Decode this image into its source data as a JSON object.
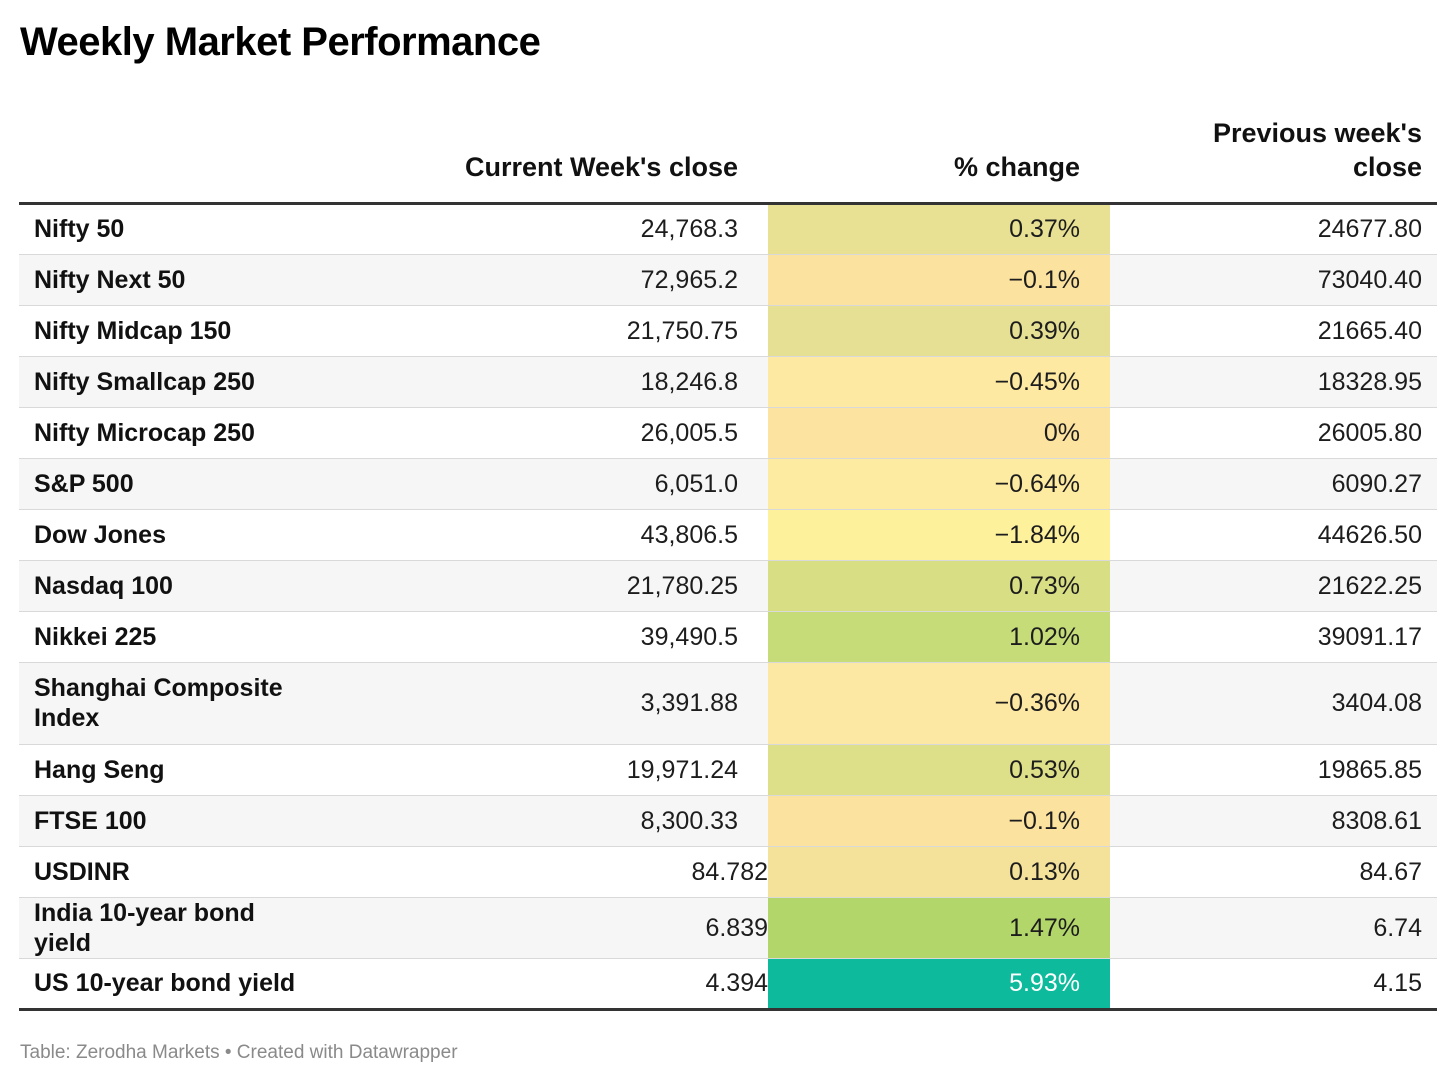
{
  "title": "Weekly Market Performance",
  "source": "Table: Zerodha Markets • Created with Datawrapper",
  "columns": {
    "name": "",
    "current": "Current Week's close",
    "pct_change": "% change",
    "previous": "Previous week's close"
  },
  "colors": {
    "negative_heat": "#fce29a",
    "neutral_heat": "#fde6a0",
    "positive_low": "#e5e195",
    "positive_mid": "#c8dc7a",
    "positive_high": "#b2d66a",
    "max_heat": "#0dbb9c"
  },
  "chart_data": {
    "type": "table",
    "title": "Weekly Market Performance",
    "columns": [
      "",
      "Current Week's close",
      "% change",
      "Previous week's close"
    ],
    "rows": [
      {
        "name": "Nifty 50",
        "current": "24,768.3",
        "pct": "0.37%",
        "pct_value": 0.37,
        "previous": "24677.80",
        "color": "#e8e193"
      },
      {
        "name": "Nifty Next 50",
        "current": "72,965.2",
        "pct": "−0.1%",
        "pct_value": -0.1,
        "previous": "73040.40",
        "color": "#fce29f"
      },
      {
        "name": "Nifty Midcap 150",
        "current": "21,750.75",
        "pct": "0.39%",
        "pct_value": 0.39,
        "previous": "21665.40",
        "color": "#e5e093"
      },
      {
        "name": "Nifty Smallcap 250",
        "current": "18,246.8",
        "pct": "−0.45%",
        "pct_value": -0.45,
        "previous": "18328.95",
        "color": "#fde9a2"
      },
      {
        "name": "Nifty Microcap 250",
        "current": "26,005.5",
        "pct": "0%",
        "pct_value": 0,
        "previous": "26005.80",
        "color": "#fce39f"
      },
      {
        "name": "S&P 500",
        "current": "6,051.0",
        "pct": "−0.64%",
        "pct_value": -0.64,
        "previous": "6090.27",
        "color": "#fdeba2"
      },
      {
        "name": "Dow Jones",
        "current": "43,806.5",
        "pct": "−1.84%",
        "pct_value": -1.84,
        "previous": "44626.50",
        "color": "#fef19c"
      },
      {
        "name": "Nasdaq 100",
        "current": "21,780.25",
        "pct": "0.73%",
        "pct_value": 0.73,
        "previous": "21622.25",
        "color": "#d8de84"
      },
      {
        "name": "Nikkei 225",
        "current": "39,490.5",
        "pct": "1.02%",
        "pct_value": 1.02,
        "previous": "39091.17",
        "color": "#c6dc79"
      },
      {
        "name": "Shanghai Composite Index",
        "current": "3,391.88",
        "pct": "−0.36%",
        "pct_value": -0.36,
        "previous": "3404.08",
        "color": "#fde8a3"
      },
      {
        "name": "Hang Seng",
        "current": "19,971.24",
        "pct": "0.53%",
        "pct_value": 0.53,
        "previous": "19865.85",
        "color": "#dedf89"
      },
      {
        "name": "FTSE 100",
        "current": "8,300.33",
        "pct": "−0.1%",
        "pct_value": -0.1,
        "previous": "8308.61",
        "color": "#fce29f"
      },
      {
        "name": "USDINR",
        "current": "84.782",
        "pct": "0.13%",
        "pct_value": 0.13,
        "previous": "84.67",
        "color": "#f4e29a"
      },
      {
        "name": "India 10-year bond yield",
        "current": "6.839",
        "pct": "1.47%",
        "pct_value": 1.47,
        "previous": "6.74",
        "color": "#b2d66a"
      },
      {
        "name": "US 10-year bond yield",
        "current": "4.394",
        "pct": "5.93%",
        "pct_value": 5.93,
        "previous": "4.15",
        "color": "#0dbb9c"
      }
    ]
  }
}
